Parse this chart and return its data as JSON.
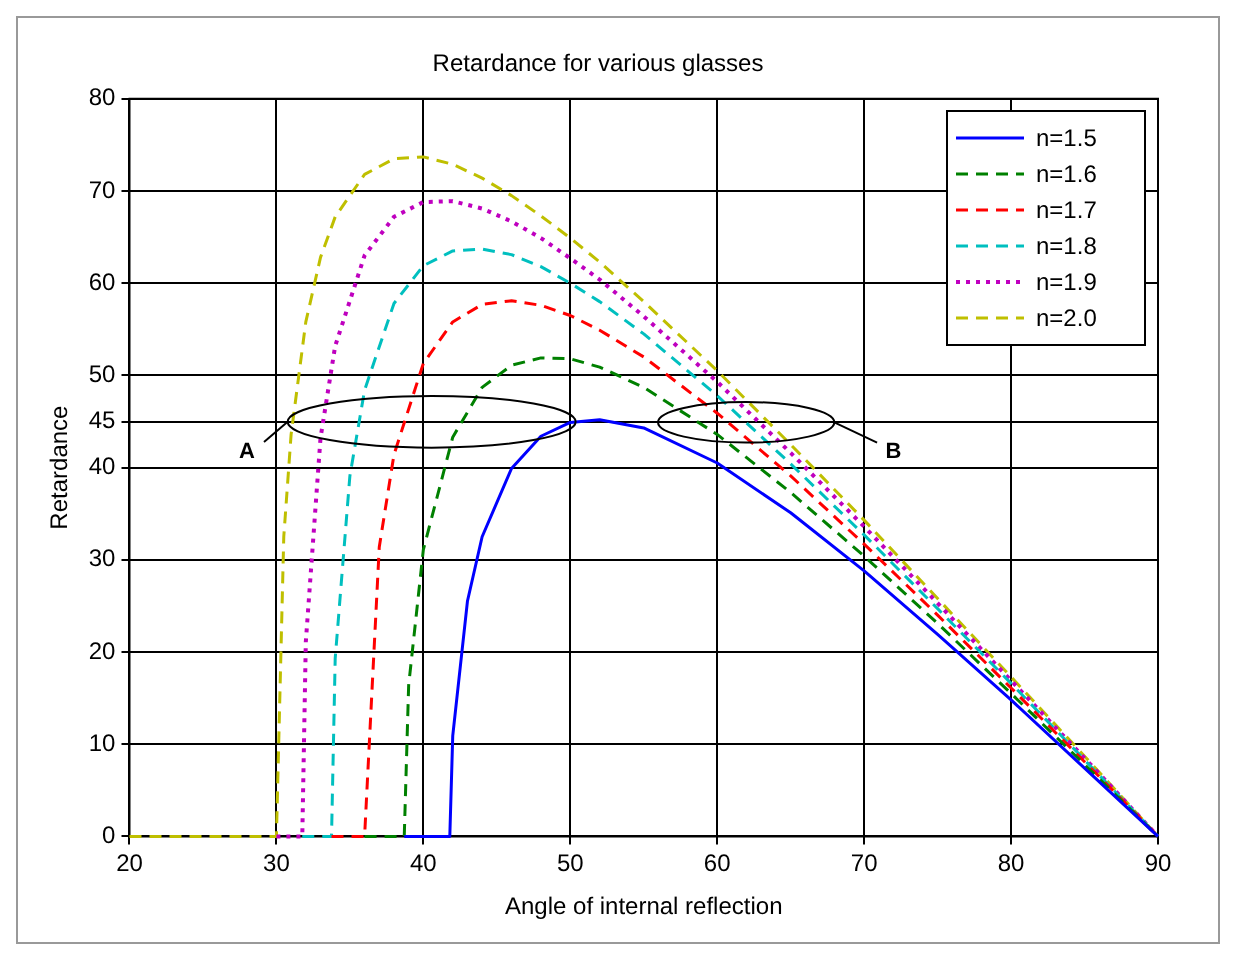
{
  "chart_data": {
    "type": "line",
    "title": "Retardance for various glasses",
    "xlabel": "Angle of internal reflection",
    "ylabel": "Retardance",
    "xlim": [
      20,
      90
    ],
    "xticks": [
      20,
      30,
      40,
      50,
      60,
      70,
      80,
      90
    ],
    "ylim": [
      0,
      80
    ],
    "yticks": [
      0,
      10,
      20,
      30,
      40,
      45,
      50,
      60,
      70,
      80
    ],
    "grid": true,
    "legend": "top right",
    "marker": "none",
    "annotations": [
      "A",
      "B"
    ],
    "series": [
      {
        "name": "n=1.5",
        "color": "#0000ff",
        "line_style": "solid",
        "x": [
          38.7,
          41.8,
          42,
          43,
          44,
          46,
          48,
          50,
          52,
          55,
          60,
          65,
          70,
          75,
          80,
          85,
          90
        ],
        "values": [
          0,
          0,
          10.9,
          25.5,
          32.5,
          39.9,
          43.4,
          44.9,
          45.2,
          44.3,
          40.5,
          35.1,
          28.8,
          21.9,
          14.8,
          7.4,
          0
        ]
      },
      {
        "name": "n=1.6",
        "color": "#008000",
        "line_style": "dashed",
        "x": [
          36,
          38.7,
          39,
          40,
          42,
          44,
          46,
          48,
          50,
          52,
          55,
          60,
          65,
          70,
          75,
          80,
          85,
          90
        ],
        "values": [
          0,
          0,
          16.4,
          31.1,
          43.3,
          48.7,
          51.1,
          51.9,
          51.8,
          50.9,
          48.7,
          43.6,
          37.3,
          30.4,
          23.1,
          15.5,
          7.8,
          0
        ]
      },
      {
        "name": "n=1.7",
        "color": "#ff0000",
        "line_style": "dashed",
        "x": [
          33.75,
          36,
          37,
          38,
          40,
          42,
          44,
          46,
          48,
          50,
          52,
          55,
          60,
          65,
          70,
          75,
          80,
          85,
          90
        ],
        "values": [
          0,
          0,
          31.4,
          41.4,
          51.3,
          55.8,
          57.7,
          58.1,
          57.6,
          56.5,
          54.9,
          52,
          45.9,
          39.1,
          31.7,
          24,
          16.1,
          8.1,
          0
        ]
      },
      {
        "name": "n=1.8",
        "color": "#00bfbf",
        "line_style": "dashed",
        "x": [
          31.76,
          33.75,
          34,
          35,
          36,
          38,
          40,
          42,
          44,
          46,
          48,
          50,
          52,
          55,
          60,
          65,
          70,
          75,
          80,
          85,
          90
        ],
        "values": [
          0,
          0,
          19.3,
          39.1,
          48.4,
          57.8,
          61.9,
          63.5,
          63.7,
          63.1,
          61.8,
          60,
          58,
          54.5,
          47.8,
          40.4,
          32.7,
          24.7,
          16.6,
          8.3,
          0
        ]
      },
      {
        "name": "n=1.9",
        "color": "#bf00bf",
        "line_style": "dotted",
        "x": [
          30,
          31.76,
          32,
          33,
          34,
          36,
          38,
          40,
          42,
          44,
          46,
          48,
          50,
          52,
          55,
          60,
          65,
          70,
          75,
          80,
          85,
          90
        ],
        "values": [
          0,
          0,
          21.1,
          43.2,
          53.2,
          63,
          67.2,
          68.8,
          68.9,
          68.1,
          66.7,
          64.9,
          62.7,
          60.4,
          56.4,
          49.3,
          41.6,
          33.6,
          25.3,
          16.9,
          8.5,
          0
        ]
      },
      {
        "name": "n=2.0",
        "color": "#bfbf00",
        "line_style": "dashed",
        "x": [
          20,
          30,
          30.5,
          31,
          32,
          33,
          34,
          36,
          38,
          40,
          42,
          44,
          46,
          48,
          50,
          52,
          55,
          60,
          65,
          70,
          75,
          80,
          85,
          90
        ],
        "values": [
          0,
          0,
          32.5,
          43.6,
          55.8,
          62.8,
          67.2,
          71.8,
          73.5,
          73.7,
          72.9,
          71.4,
          69.5,
          67.3,
          64.9,
          62.3,
          58,
          50.5,
          42.5,
          34.3,
          25.8,
          17.3,
          8.7,
          0
        ]
      }
    ]
  }
}
